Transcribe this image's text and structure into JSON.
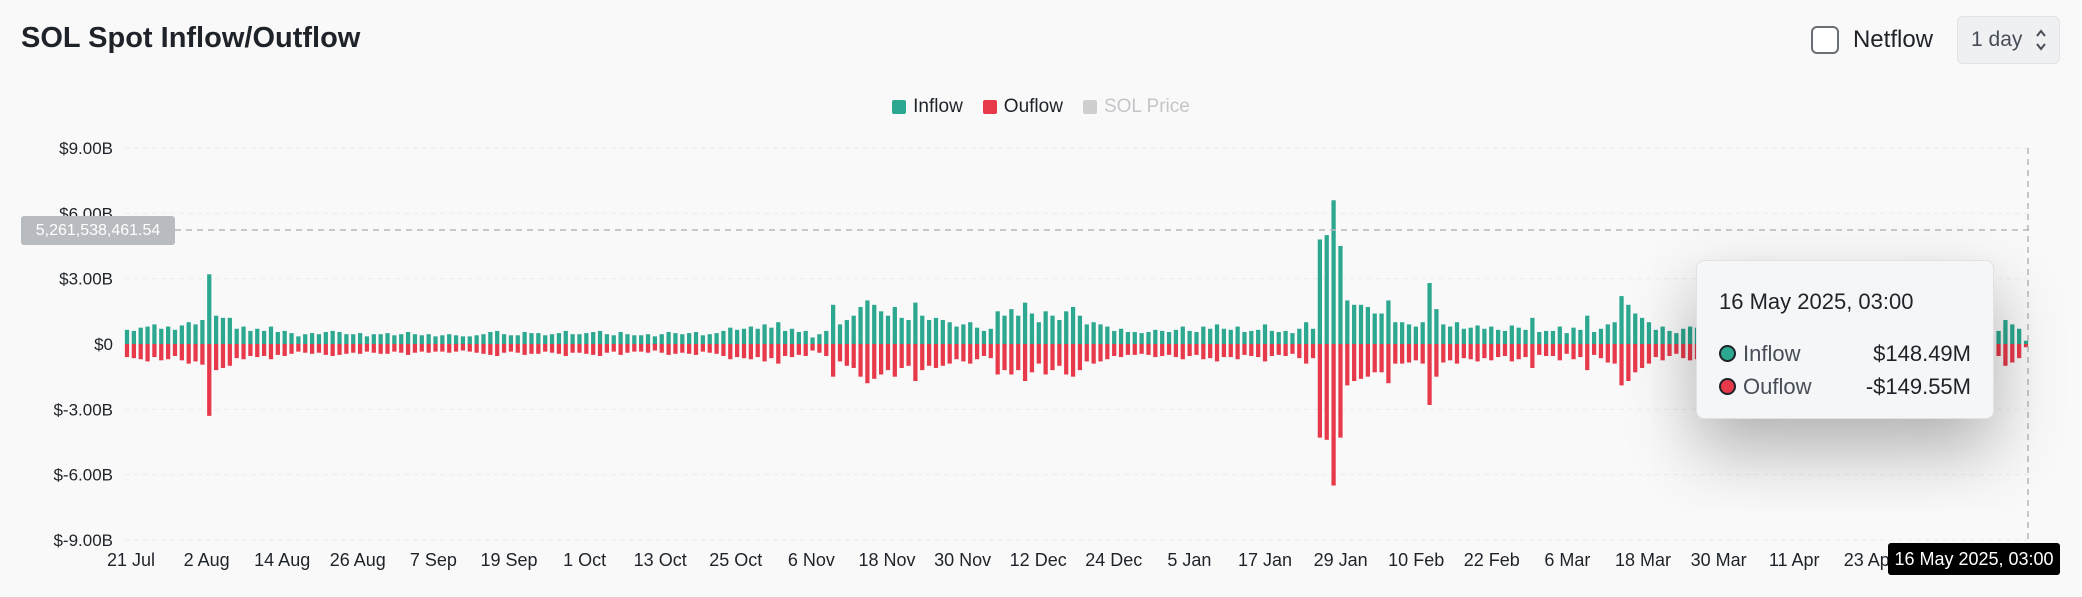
{
  "header": {
    "title": "SOL Spot Inflow/Outflow",
    "netflow_label": "Netflow",
    "interval_value": "1 day"
  },
  "legend": {
    "items": [
      {
        "label": "Inflow",
        "color": "#2ba88f",
        "active": true
      },
      {
        "label": "Ouflow",
        "color": "#e8394a",
        "active": true
      },
      {
        "label": "SOL Price",
        "color": "#cfcfcf",
        "active": false
      }
    ]
  },
  "tooltip": {
    "title": "16 May 2025, 03:00",
    "rows": [
      {
        "name": "Inflow",
        "value": "$148.49M",
        "dot_color": "#2ba88f"
      },
      {
        "name": "Ouflow",
        "value": "-$149.55M",
        "dot_color": "#e8394a"
      }
    ]
  },
  "crosshair": {
    "x_label": "16 May 2025, 03:00",
    "y_label": "5,261,538,461.54"
  },
  "chart_data": {
    "type": "bar",
    "ylim": [
      -9,
      9
    ],
    "y_unit": "B USD",
    "y_ticks": [
      {
        "value": 9,
        "label": "$9.00B"
      },
      {
        "value": 6,
        "label": "$6.00B"
      },
      {
        "value": 3,
        "label": "$3.00B"
      },
      {
        "value": 0,
        "label": "$0"
      },
      {
        "value": -3,
        "label": "$-3.00B"
      },
      {
        "value": -6,
        "label": "$-6.00B"
      },
      {
        "value": -9,
        "label": "$-9.00B"
      }
    ],
    "x_ticks": [
      "21 Jul",
      "2 Aug",
      "14 Aug",
      "26 Aug",
      "7 Sep",
      "19 Sep",
      "1 Oct",
      "13 Oct",
      "25 Oct",
      "6 Nov",
      "18 Nov",
      "30 Nov",
      "12 Dec",
      "24 Dec",
      "5 Jan",
      "17 Jan",
      "29 Jan",
      "10 Feb",
      "22 Feb",
      "6 Mar",
      "18 Mar",
      "30 Mar",
      "11 Apr",
      "23 Apr"
    ],
    "grid": true,
    "legend_position": "top-center",
    "series": [
      {
        "name": "Inflow",
        "color": "#2ba88f",
        "values": [
          0.65,
          0.6,
          0.75,
          0.8,
          0.9,
          0.7,
          0.8,
          0.65,
          0.85,
          1.0,
          0.9,
          1.1,
          3.2,
          1.3,
          1.2,
          1.2,
          0.7,
          0.8,
          0.6,
          0.7,
          0.6,
          0.8,
          0.55,
          0.6,
          0.5,
          0.35,
          0.45,
          0.5,
          0.45,
          0.55,
          0.6,
          0.55,
          0.45,
          0.45,
          0.5,
          0.35,
          0.45,
          0.45,
          0.5,
          0.4,
          0.45,
          0.55,
          0.45,
          0.4,
          0.45,
          0.35,
          0.4,
          0.45,
          0.4,
          0.35,
          0.35,
          0.4,
          0.45,
          0.55,
          0.6,
          0.45,
          0.4,
          0.4,
          0.55,
          0.5,
          0.5,
          0.4,
          0.45,
          0.5,
          0.6,
          0.45,
          0.45,
          0.5,
          0.55,
          0.6,
          0.45,
          0.4,
          0.55,
          0.45,
          0.4,
          0.4,
          0.45,
          0.35,
          0.45,
          0.55,
          0.5,
          0.45,
          0.5,
          0.55,
          0.4,
          0.45,
          0.5,
          0.6,
          0.75,
          0.65,
          0.7,
          0.8,
          0.7,
          0.9,
          0.75,
          1.0,
          0.6,
          0.7,
          0.55,
          0.6,
          0.3,
          0.45,
          0.6,
          1.8,
          0.9,
          1.1,
          1.3,
          1.7,
          2.0,
          1.8,
          1.5,
          1.3,
          1.7,
          1.2,
          1.1,
          1.9,
          1.3,
          1.1,
          1.2,
          1.1,
          1.0,
          0.8,
          0.9,
          1.0,
          0.75,
          0.6,
          0.7,
          1.5,
          1.3,
          1.6,
          1.3,
          1.9,
          1.4,
          1.0,
          1.5,
          1.3,
          1.1,
          1.5,
          1.7,
          1.3,
          0.9,
          1.0,
          0.9,
          0.8,
          0.6,
          0.7,
          0.55,
          0.55,
          0.5,
          0.55,
          0.65,
          0.6,
          0.55,
          0.65,
          0.8,
          0.6,
          0.55,
          0.8,
          0.7,
          0.9,
          0.7,
          0.65,
          0.8,
          0.55,
          0.6,
          0.65,
          0.9,
          0.6,
          0.55,
          0.6,
          0.5,
          0.7,
          1.0,
          0.7,
          4.8,
          5.0,
          6.6,
          4.5,
          2.0,
          1.8,
          1.8,
          1.7,
          1.4,
          1.4,
          2.0,
          1.0,
          1.0,
          0.9,
          0.8,
          1.0,
          2.8,
          1.6,
          0.9,
          0.8,
          1.0,
          0.7,
          0.75,
          0.85,
          0.7,
          0.8,
          0.65,
          0.6,
          0.85,
          0.75,
          0.65,
          1.2,
          0.55,
          0.6,
          0.6,
          0.8,
          0.5,
          0.75,
          0.65,
          1.3,
          0.55,
          0.7,
          0.9,
          1.0,
          2.2,
          1.8,
          1.4,
          1.2,
          1.0,
          0.65,
          0.8,
          0.6,
          0.5,
          0.7,
          0.8,
          0.75,
          0.6,
          0.5,
          0.55,
          0.55,
          0.65,
          0.5,
          0.5,
          0.6,
          0.45,
          0.55,
          0.75,
          0.6,
          0.55,
          0.5,
          0.6,
          0.7,
          0.55,
          0.5,
          0.45,
          0.6,
          0.55,
          0.65,
          0.5,
          0.6,
          0.55,
          0.45,
          0.5,
          0.55,
          0.5,
          0.45,
          0.45,
          0.6,
          0.55,
          0.5,
          0.5,
          0.45,
          0.55,
          0.55,
          0.6,
          0.5,
          0.65,
          0.6,
          0.75,
          0.6,
          1.1,
          0.9,
          0.7,
          0.15
        ]
      },
      {
        "name": "Ouflow",
        "color": "#e8394a",
        "values": [
          -0.6,
          -0.65,
          -0.7,
          -0.8,
          -0.6,
          -0.75,
          -0.7,
          -0.55,
          -0.75,
          -0.9,
          -0.8,
          -0.95,
          -3.3,
          -1.2,
          -1.1,
          -1.0,
          -0.65,
          -0.7,
          -0.55,
          -0.6,
          -0.55,
          -0.7,
          -0.5,
          -0.55,
          -0.45,
          -0.35,
          -0.4,
          -0.45,
          -0.4,
          -0.5,
          -0.55,
          -0.5,
          -0.45,
          -0.4,
          -0.45,
          -0.35,
          -0.4,
          -0.45,
          -0.45,
          -0.35,
          -0.4,
          -0.5,
          -0.4,
          -0.35,
          -0.4,
          -0.35,
          -0.35,
          -0.4,
          -0.35,
          -0.3,
          -0.35,
          -0.4,
          -0.45,
          -0.5,
          -0.55,
          -0.4,
          -0.35,
          -0.4,
          -0.5,
          -0.45,
          -0.45,
          -0.35,
          -0.4,
          -0.45,
          -0.55,
          -0.4,
          -0.4,
          -0.45,
          -0.5,
          -0.55,
          -0.4,
          -0.35,
          -0.5,
          -0.4,
          -0.35,
          -0.35,
          -0.4,
          -0.3,
          -0.4,
          -0.5,
          -0.45,
          -0.4,
          -0.45,
          -0.5,
          -0.35,
          -0.4,
          -0.45,
          -0.55,
          -0.7,
          -0.6,
          -0.65,
          -0.7,
          -0.6,
          -0.8,
          -0.65,
          -0.9,
          -0.55,
          -0.6,
          -0.5,
          -0.55,
          -0.3,
          -0.4,
          -0.55,
          -1.5,
          -0.8,
          -1.0,
          -1.1,
          -1.5,
          -1.8,
          -1.6,
          -1.4,
          -1.2,
          -1.5,
          -1.1,
          -1.0,
          -1.7,
          -1.2,
          -1.0,
          -1.1,
          -1.0,
          -0.9,
          -0.7,
          -0.8,
          -0.9,
          -0.7,
          -0.55,
          -0.65,
          -1.4,
          -1.2,
          -1.4,
          -1.2,
          -1.7,
          -1.3,
          -0.9,
          -1.4,
          -1.2,
          -1.0,
          -1.4,
          -1.5,
          -1.2,
          -0.8,
          -0.9,
          -0.8,
          -0.7,
          -0.55,
          -0.6,
          -0.5,
          -0.5,
          -0.45,
          -0.5,
          -0.6,
          -0.55,
          -0.5,
          -0.6,
          -0.7,
          -0.55,
          -0.5,
          -0.7,
          -0.65,
          -0.8,
          -0.6,
          -0.6,
          -0.7,
          -0.5,
          -0.55,
          -0.6,
          -0.8,
          -0.55,
          -0.5,
          -0.55,
          -0.45,
          -0.65,
          -0.9,
          -0.65,
          -4.3,
          -4.4,
          -6.5,
          -4.3,
          -1.9,
          -1.7,
          -1.6,
          -1.5,
          -1.3,
          -1.3,
          -1.8,
          -0.9,
          -0.9,
          -0.85,
          -0.75,
          -0.9,
          -2.8,
          -1.5,
          -0.85,
          -0.75,
          -0.9,
          -0.65,
          -0.7,
          -0.8,
          -0.65,
          -0.75,
          -0.6,
          -0.55,
          -0.8,
          -0.7,
          -0.6,
          -1.1,
          -0.5,
          -0.55,
          -0.55,
          -0.75,
          -0.45,
          -0.7,
          -0.6,
          -1.2,
          -0.5,
          -0.65,
          -0.85,
          -0.9,
          -1.9,
          -1.7,
          -1.3,
          -1.1,
          -0.9,
          -0.6,
          -0.75,
          -0.55,
          -0.45,
          -0.65,
          -0.75,
          -0.7,
          -0.55,
          -0.45,
          -0.5,
          -0.5,
          -0.6,
          -0.45,
          -0.45,
          -0.55,
          -0.4,
          -0.5,
          -0.7,
          -0.55,
          -0.5,
          -0.45,
          -0.55,
          -0.65,
          -0.5,
          -0.45,
          -0.4,
          -0.55,
          -0.5,
          -0.6,
          -0.45,
          -0.55,
          -0.5,
          -0.4,
          -0.45,
          -0.5,
          -0.45,
          -0.4,
          -0.4,
          -0.55,
          -0.5,
          -0.45,
          -0.45,
          -0.4,
          -0.5,
          -0.5,
          -0.55,
          -0.45,
          -0.6,
          -0.55,
          -0.7,
          -0.55,
          -1.0,
          -0.85,
          -0.65,
          -0.15
        ]
      }
    ]
  }
}
